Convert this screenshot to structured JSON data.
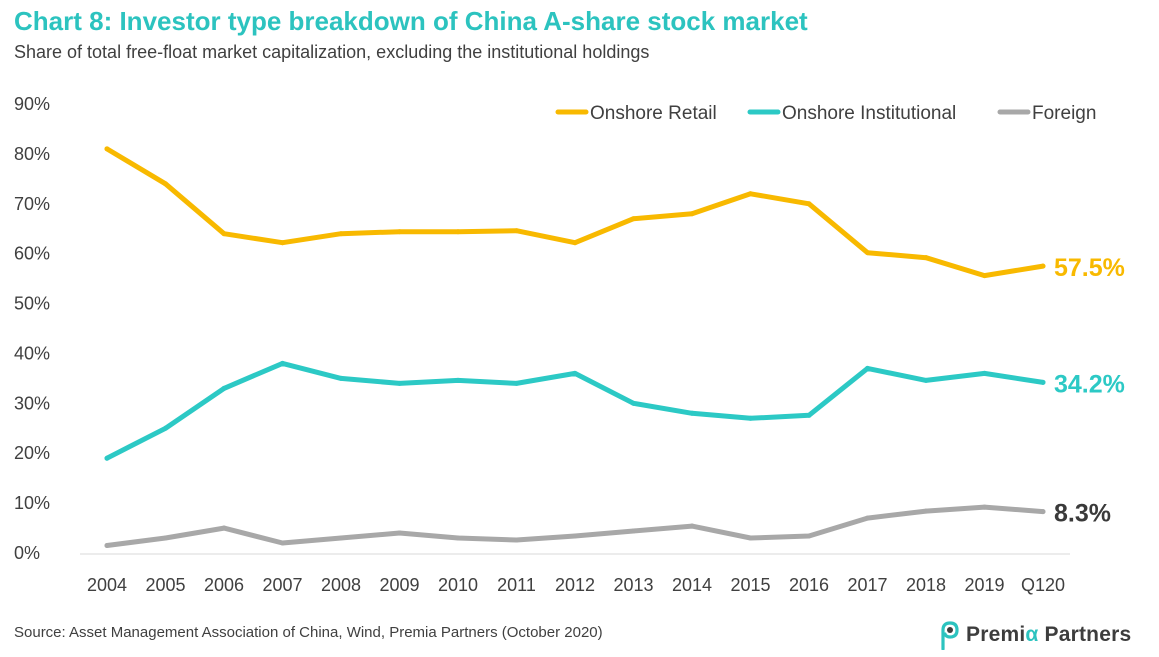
{
  "page": {
    "title": "Chart 8: Investor type breakdown of China A-share stock market",
    "subtitle": "Share of total free-float market capitalization, excluding the institutional holdings",
    "source": "Source: Asset Management Association of China, Wind, Premia Partners (October 2020)",
    "logo": {
      "part1": "Premi",
      "part2": "α",
      "part3": " Partners",
      "icon": "premia-logo-icon"
    }
  },
  "chart_data": {
    "type": "line",
    "title": "Chart 8: Investor type breakdown of China A-share stock market",
    "subtitle": "Share of total free-float market capitalization, excluding the institutional holdings",
    "xlabel": "",
    "ylabel": "",
    "categories": [
      "2004",
      "2005",
      "2006",
      "2007",
      "2008",
      "2009",
      "2010",
      "2011",
      "2012",
      "2013",
      "2014",
      "2015",
      "2016",
      "2017",
      "2018",
      "2019",
      "Q120"
    ],
    "ylim": [
      0,
      90
    ],
    "yticks": [
      0,
      10,
      20,
      30,
      40,
      50,
      60,
      70,
      80,
      90
    ],
    "ytick_labels": [
      "0%",
      "10%",
      "20%",
      "30%",
      "40%",
      "50%",
      "60%",
      "70%",
      "80%",
      "90%"
    ],
    "grid": false,
    "legend_position": "top-right",
    "series": [
      {
        "name": "Onshore Retail",
        "color": "#f8b900",
        "values": [
          81,
          74,
          64,
          62.2,
          64,
          64.4,
          64.4,
          64.6,
          62.2,
          67,
          68,
          72,
          70,
          60.2,
          59.2,
          55.6,
          57.5
        ],
        "end_label": "57.5%"
      },
      {
        "name": "Onshore Institutional",
        "color": "#2cc9c5",
        "values": [
          19,
          25,
          33,
          38,
          35,
          34,
          34.6,
          34,
          36,
          30,
          28,
          27,
          27.6,
          37,
          34.6,
          36,
          34.2
        ],
        "end_label": "34.2%"
      },
      {
        "name": "Foreign",
        "color": "#a8a8a8",
        "values": [
          1.5,
          3,
          5,
          2,
          3,
          4,
          3,
          2.6,
          3.4,
          4.4,
          5.4,
          3,
          3.4,
          7,
          8.4,
          9.2,
          8.3
        ],
        "end_label": "8.3%"
      }
    ],
    "end_label_colors": [
      "#f8b900",
      "#2cc9c5",
      "#3a3a3a"
    ]
  }
}
